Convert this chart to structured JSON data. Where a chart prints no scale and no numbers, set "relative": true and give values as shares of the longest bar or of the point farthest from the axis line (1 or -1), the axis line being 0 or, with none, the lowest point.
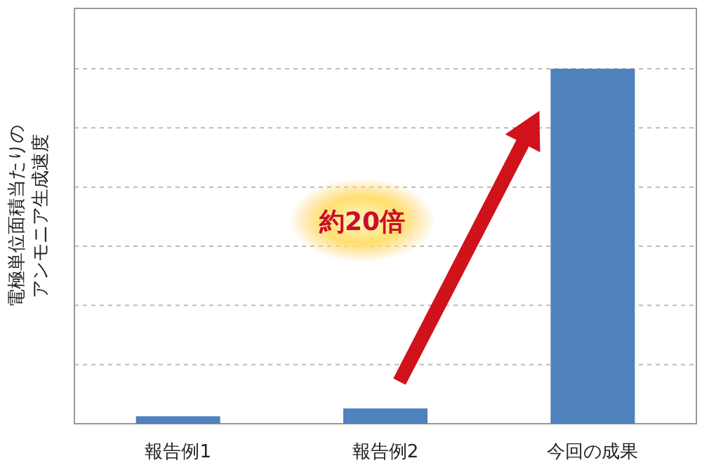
{
  "chart_data": {
    "type": "bar",
    "relative": true,
    "categories": [
      "報告例1",
      "報告例2",
      "今回の成果"
    ],
    "values": [
      0.021,
      0.043,
      1
    ],
    "color": "#4f81bd",
    "grid": "y",
    "ylabel": "電極単位面積当たりのアンモニア生成速度",
    "annotations": [
      "約20倍"
    ]
  }
}
